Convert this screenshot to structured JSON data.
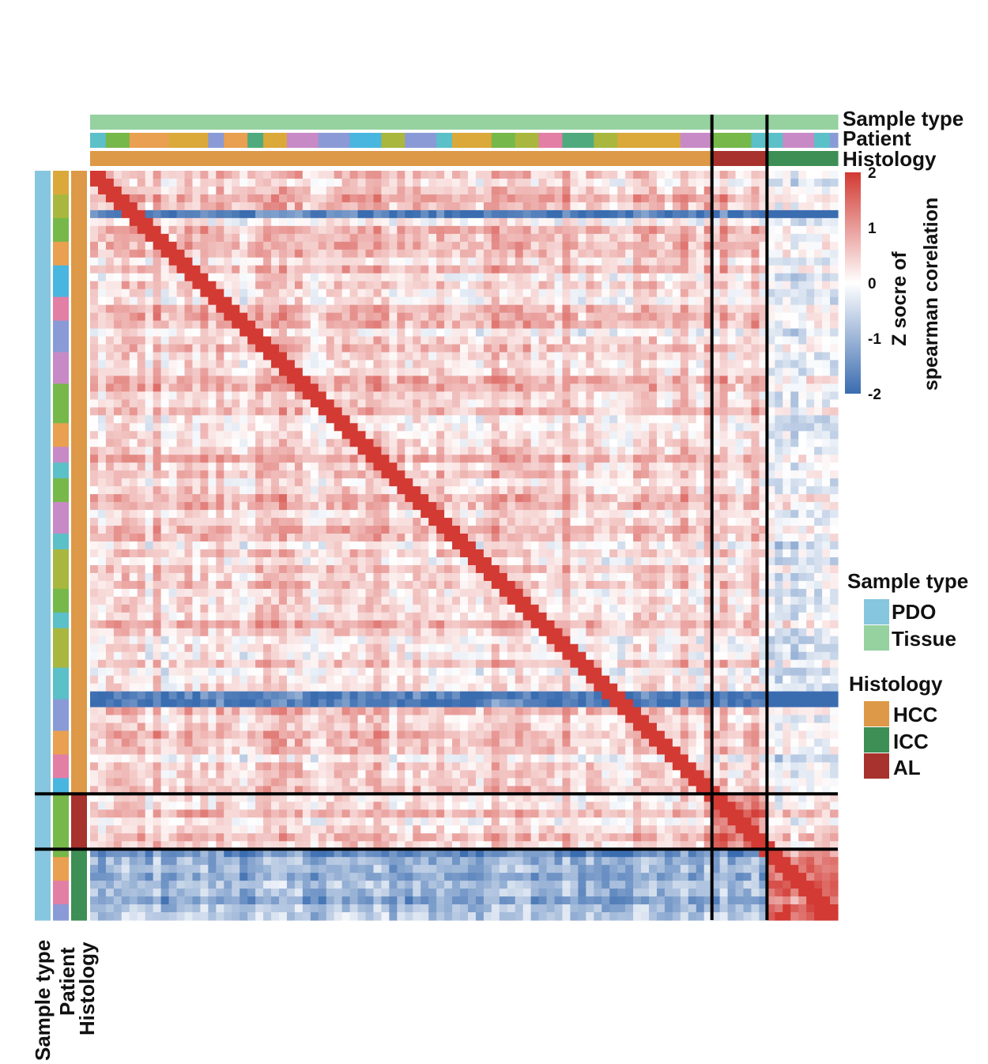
{
  "chart_data": {
    "type": "heatmap",
    "title": "",
    "groups": [
      {
        "sample_type": "Tissue",
        "histology": "HCC",
        "n": 79
      },
      {
        "sample_type": "Tissue",
        "histology": "AL",
        "n": 7
      },
      {
        "sample_type": "Tissue",
        "histology": "ICC",
        "n": 9
      }
    ],
    "row_groups": [
      {
        "sample_type": "PDO",
        "histology": "HCC",
        "n": 79
      },
      {
        "sample_type": "PDO",
        "histology": "AL",
        "n": 7
      },
      {
        "sample_type": "PDO",
        "histology": "ICC",
        "n": 9
      }
    ],
    "block_means": [
      [
        0.45,
        0.35,
        -0.25
      ],
      [
        0.35,
        1.3,
        0.1
      ],
      [
        -1.1,
        -1.1,
        1.3
      ]
    ],
    "diagonal_value": 2,
    "annotation_tracks_top": [
      "Sample type",
      "Patient",
      "Histology"
    ],
    "annotation_tracks_left": [
      "Sample type",
      "Patient",
      "Histology"
    ],
    "colorbar": {
      "title_line1": "Z socre of",
      "title_line2": "spearman corelation",
      "ticks": [
        {
          "value": 2,
          "label": "2"
        },
        {
          "value": 1,
          "label": "1"
        },
        {
          "value": 0,
          "label": "0"
        },
        {
          "value": -1,
          "label": "-1"
        },
        {
          "value": -2,
          "label": "-2"
        }
      ],
      "range": [
        -2,
        2
      ],
      "low_color": "#3a6cb0",
      "mid_color": "#ffffff",
      "high_color": "#d23a33"
    },
    "legends": [
      {
        "title": "Sample type",
        "items": [
          {
            "label": "PDO",
            "color": "#87c6df"
          },
          {
            "label": "Tissue",
            "color": "#96d1a0"
          }
        ]
      },
      {
        "title": "Histology",
        "items": [
          {
            "label": "HCC",
            "color": "#dd9947"
          },
          {
            "label": "ICC",
            "color": "#3d8f55"
          },
          {
            "label": "AL",
            "color": "#a8322d"
          }
        ]
      }
    ],
    "patient_palette": [
      "#5bc0c8",
      "#e37fa5",
      "#8a9ad6",
      "#76b84a",
      "#c88ac6",
      "#dba93a",
      "#4fab7e",
      "#e9a050",
      "#49b6e0",
      "#a9b73f"
    ]
  }
}
